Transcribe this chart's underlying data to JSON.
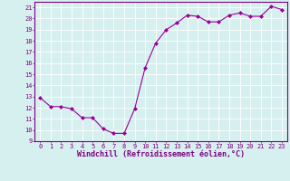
{
  "x": [
    0,
    1,
    2,
    3,
    4,
    5,
    6,
    7,
    8,
    9,
    10,
    11,
    12,
    13,
    14,
    15,
    16,
    17,
    18,
    19,
    20,
    21,
    22,
    23
  ],
  "y": [
    12.9,
    12.1,
    12.1,
    11.9,
    11.1,
    11.1,
    10.1,
    9.7,
    9.7,
    11.9,
    15.6,
    17.8,
    19.0,
    19.6,
    20.3,
    20.2,
    19.7,
    19.7,
    20.3,
    20.5,
    20.2,
    20.2,
    21.1,
    20.8
  ],
  "line_color": "#990099",
  "marker": "D",
  "marker_size": 2.0,
  "bg_color": "#d6f0ef",
  "grid_color": "#ffffff",
  "xlabel": "Windchill (Refroidissement éolien,°C)",
  "ylabel_ticks": [
    9,
    10,
    11,
    12,
    13,
    14,
    15,
    16,
    17,
    18,
    19,
    20,
    21
  ],
  "xlim": [
    -0.5,
    23.5
  ],
  "ylim": [
    9,
    21.5
  ],
  "xticks": [
    0,
    1,
    2,
    3,
    4,
    5,
    6,
    7,
    8,
    9,
    10,
    11,
    12,
    13,
    14,
    15,
    16,
    17,
    18,
    19,
    20,
    21,
    22,
    23
  ],
  "tick_label_size": 5.0,
  "xlabel_size": 6.0,
  "axis_color": "#800080",
  "spine_color": "#800080"
}
